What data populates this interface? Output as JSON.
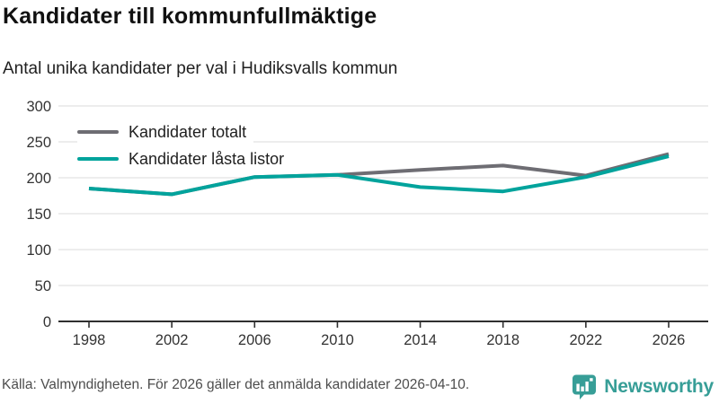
{
  "header": {
    "title": "Kandidater till kommunfullmäktige",
    "subtitle": "Antal unika kandidater per val i Hudiksvalls kommun"
  },
  "chart_data": {
    "type": "line",
    "x": [
      1998,
      2002,
      2006,
      2010,
      2014,
      2018,
      2022,
      2026
    ],
    "series": [
      {
        "name": "Kandidater totalt",
        "color": "#6e6d73",
        "values": [
          185,
          177,
          201,
          204,
          211,
          217,
          203,
          233
        ]
      },
      {
        "name": "Kandidater låsta listor",
        "color": "#00a39c",
        "values": [
          185,
          177,
          201,
          204,
          187,
          181,
          201,
          230
        ]
      }
    ],
    "title": "Kandidater till kommunfullmäktige",
    "subtitle": "Antal unika kandidater per val i Hudiksvalls kommun",
    "xlabel": "",
    "ylabel": "",
    "ylim": [
      0,
      300
    ],
    "yticks": [
      0,
      50,
      100,
      150,
      200,
      250,
      300
    ],
    "xticks": [
      1998,
      2002,
      2006,
      2010,
      2014,
      2018,
      2022,
      2026
    ],
    "grid": "horizontal",
    "legend_position": "top-left",
    "colors": {
      "gridline": "#e7e7e7",
      "axis": "#2f2f2f",
      "tick_label": "#333333"
    }
  },
  "footer": {
    "source": "Källa: Valmyndigheten. För 2026 gäller det anmälda kandidater 2026-04-10.",
    "brand": "Newsworthy",
    "brand_color": "#379e97"
  }
}
